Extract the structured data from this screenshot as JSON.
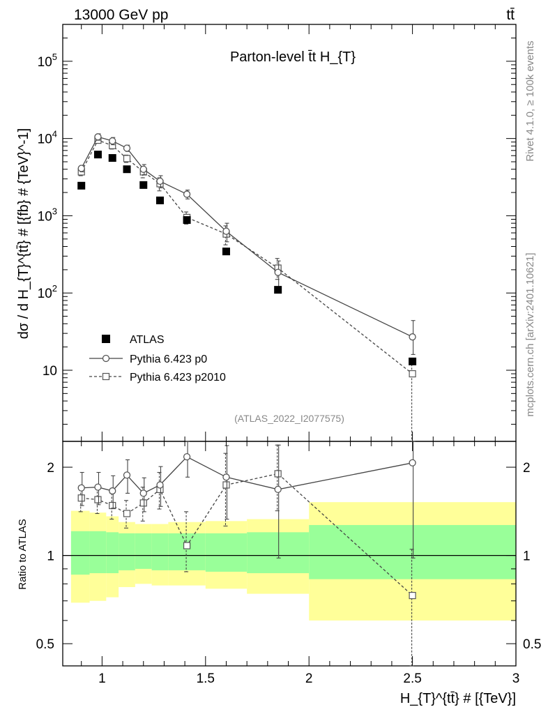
{
  "header": {
    "left": "13000 GeV pp",
    "right": "tt̄"
  },
  "side": {
    "rivet": "Rivet 4.1.0, ≥ 100k events",
    "mcplots": "mcplots.cern.ch [arXiv:2401.10621]"
  },
  "chart_data": [
    {
      "type": "scatter",
      "title": "Parton-level t̄t  H_{T}",
      "analysis": "(ATLAS_2022_I2077575)",
      "ylabel": "dσ / d H_{T}^{tt̄} # [{fb} # {TeV}^-1]",
      "yscale": "log",
      "ylim": [
        1.2,
        300000
      ],
      "xlim": [
        0.81,
        3.0
      ],
      "y_tick_labels": [
        "10",
        "10^2",
        "10^3",
        "10^4",
        "10^5"
      ],
      "legend": [
        "ATLAS",
        "Pythia 6.423 p0",
        "Pythia 6.423 p2010"
      ],
      "series": [
        {
          "name": "ATLAS",
          "x": [
            0.9,
            0.98,
            1.05,
            1.12,
            1.2,
            1.28,
            1.41,
            1.6,
            1.85,
            2.5
          ],
          "values": [
            2450,
            6200,
            5600,
            4000,
            2500,
            1580,
            880,
            345,
            110,
            13
          ]
        },
        {
          "name": "Pythia 6.423 p0",
          "x": [
            0.9,
            0.98,
            1.05,
            1.12,
            1.2,
            1.28,
            1.41,
            1.6,
            1.85,
            2.5
          ],
          "values": [
            4100,
            10500,
            9300,
            7500,
            4000,
            2800,
            1900,
            630,
            185,
            27
          ],
          "err_low": [
            3700,
            9500,
            8300,
            6800,
            3400,
            2300,
            1650,
            460,
            120,
            16
          ],
          "err_high": [
            4500,
            11500,
            10300,
            8200,
            4600,
            3300,
            2150,
            800,
            260,
            44
          ]
        },
        {
          "name": "Pythia 6.423 p2010",
          "x": [
            0.9,
            0.98,
            1.05,
            1.12,
            1.2,
            1.28,
            1.41,
            1.6,
            1.85,
            2.5
          ],
          "values": [
            3700,
            9500,
            8100,
            5500,
            3700,
            2600,
            950,
            580,
            210,
            9
          ],
          "err_low": [
            3300,
            8700,
            7300,
            4900,
            3100,
            2100,
            780,
            420,
            150,
            0.9
          ],
          "err_high": [
            4100,
            10300,
            8900,
            6100,
            4300,
            3100,
            1120,
            740,
            280,
            12
          ]
        }
      ]
    },
    {
      "type": "scatter",
      "ylabel": "Ratio to ATLAS",
      "yscale": "log",
      "ylim": [
        0.42,
        2.45
      ],
      "xlim": [
        0.81,
        3.0
      ],
      "xlabel": "H_{T}^{tt̄} # [{TeV}]",
      "x_tick_labels": [
        "1",
        "1.5",
        "2",
        "2.5",
        "3"
      ],
      "y_tick_labels": [
        "0.5",
        "1",
        "2"
      ],
      "bands": {
        "edges": [
          0.85,
          0.94,
          1.02,
          1.08,
          1.16,
          1.24,
          1.32,
          1.5,
          1.7,
          2.0,
          3.0
        ],
        "yellow_low": [
          0.69,
          0.7,
          0.72,
          0.78,
          0.8,
          0.79,
          0.79,
          0.77,
          0.74,
          0.6
        ],
        "yellow_high": [
          1.42,
          1.4,
          1.36,
          1.3,
          1.28,
          1.28,
          1.3,
          1.31,
          1.33,
          1.52
        ],
        "green_low": [
          0.86,
          0.87,
          0.87,
          0.89,
          0.9,
          0.89,
          0.89,
          0.88,
          0.87,
          0.83
        ],
        "green_high": [
          1.21,
          1.21,
          1.2,
          1.19,
          1.19,
          1.19,
          1.19,
          1.19,
          1.2,
          1.27
        ]
      },
      "series": [
        {
          "name": "Pythia 6.423 p0",
          "x": [
            0.9,
            0.98,
            1.05,
            1.12,
            1.2,
            1.28,
            1.41,
            1.6,
            1.85,
            2.5
          ],
          "values": [
            1.7,
            1.71,
            1.66,
            1.88,
            1.63,
            1.74,
            2.17,
            1.85,
            1.68,
            2.07
          ],
          "err_low": [
            1.48,
            1.49,
            1.45,
            1.63,
            1.41,
            1.47,
            1.85,
            1.33,
            0.98,
            0.98
          ],
          "err_high": [
            1.92,
            1.92,
            1.87,
            2.12,
            1.84,
            2.01,
            2.49,
            2.37,
            2.38,
            3.2
          ]
        },
        {
          "name": "Pythia 6.423 p2010",
          "x": [
            0.9,
            0.98,
            1.05,
            1.12,
            1.2,
            1.28,
            1.41,
            1.6,
            1.85,
            2.5
          ],
          "values": [
            1.57,
            1.55,
            1.48,
            1.39,
            1.51,
            1.68,
            1.08,
            1.74,
            1.9,
            0.73
          ],
          "err_low": [
            1.41,
            1.39,
            1.33,
            1.24,
            1.31,
            1.44,
            0.88,
            1.26,
            1.42,
            0.3
          ],
          "err_high": [
            1.73,
            1.7,
            1.63,
            1.54,
            1.71,
            1.92,
            1.41,
            2.23,
            2.38,
            1.05
          ]
        }
      ]
    }
  ]
}
